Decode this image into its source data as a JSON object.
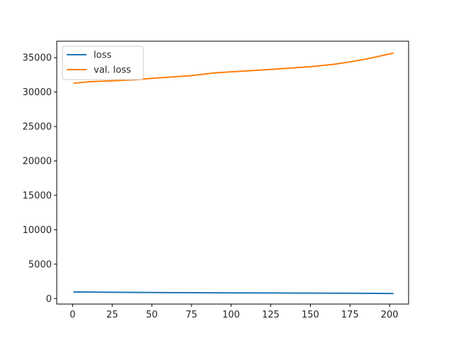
{
  "chart_data": {
    "type": "line",
    "title": "",
    "xlabel": "",
    "ylabel": "",
    "xlim": [
      -10,
      212
    ],
    "ylim": [
      -800,
      37400
    ],
    "x_ticks": [
      0,
      25,
      50,
      75,
      100,
      125,
      150,
      175,
      200
    ],
    "y_ticks": [
      0,
      5000,
      10000,
      15000,
      20000,
      25000,
      30000,
      35000
    ],
    "grid": false,
    "legend_position": "top-left",
    "series": [
      {
        "name": "loss",
        "color": "#1f77b4",
        "x": [
          1,
          25,
          50,
          75,
          100,
          125,
          150,
          175,
          202
        ],
        "y": [
          960,
          920,
          880,
          850,
          830,
          810,
          790,
          770,
          740
        ]
      },
      {
        "name": "val. loss",
        "color": "#ff7f0e",
        "x": [
          1,
          10,
          25,
          40,
          50,
          75,
          90,
          100,
          125,
          150,
          165,
          175,
          185,
          195,
          202
        ],
        "y": [
          31300,
          31500,
          31650,
          31800,
          32000,
          32400,
          32800,
          32950,
          33300,
          33700,
          34050,
          34400,
          34800,
          35300,
          35650
        ]
      }
    ]
  }
}
